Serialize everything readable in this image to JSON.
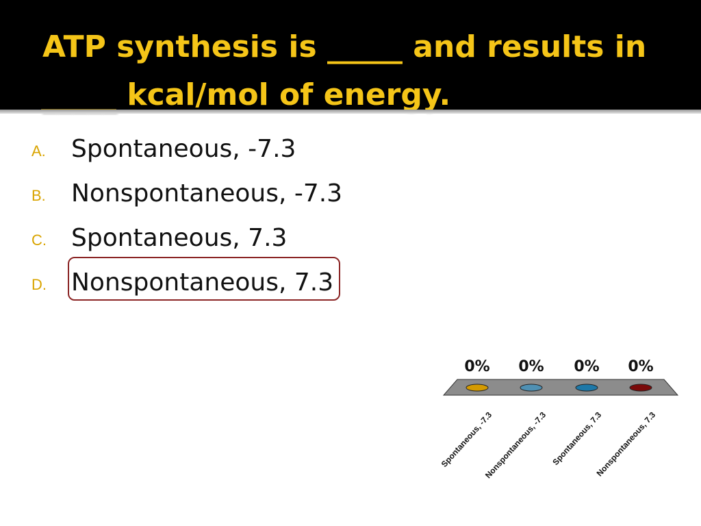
{
  "slide": {
    "title_line_1": "ATP synthesis is _____ and results in",
    "title_line_2": "_____ kcal/mol of energy."
  },
  "options": [
    {
      "letter": "A.",
      "text": "Spontaneous, -7.3"
    },
    {
      "letter": "B.",
      "text": "Nonspontaneous, -7.3"
    },
    {
      "letter": "C.",
      "text": "Spontaneous, 7.3"
    },
    {
      "letter": "D.",
      "text": "Nonspontaneous, 7.3",
      "highlighted": true
    }
  ],
  "colors": {
    "title": "#f5c518",
    "letters": "#d9a400",
    "highlight_border": "#8b2525",
    "platform": "#8c8c8c"
  },
  "chart_data": {
    "type": "bar",
    "categories": [
      "Spontaneous, -7.3",
      "Nonspontaneous, -7.3",
      "Spontaneous, 7.3",
      "Nonspontaneous, 7.3"
    ],
    "values": [
      0,
      0,
      0,
      0
    ],
    "value_labels": [
      "0%",
      "0%",
      "0%",
      "0%"
    ],
    "colors": [
      "#d49a00",
      "#4f90b3",
      "#1d78a8",
      "#7a0a0a"
    ]
  }
}
